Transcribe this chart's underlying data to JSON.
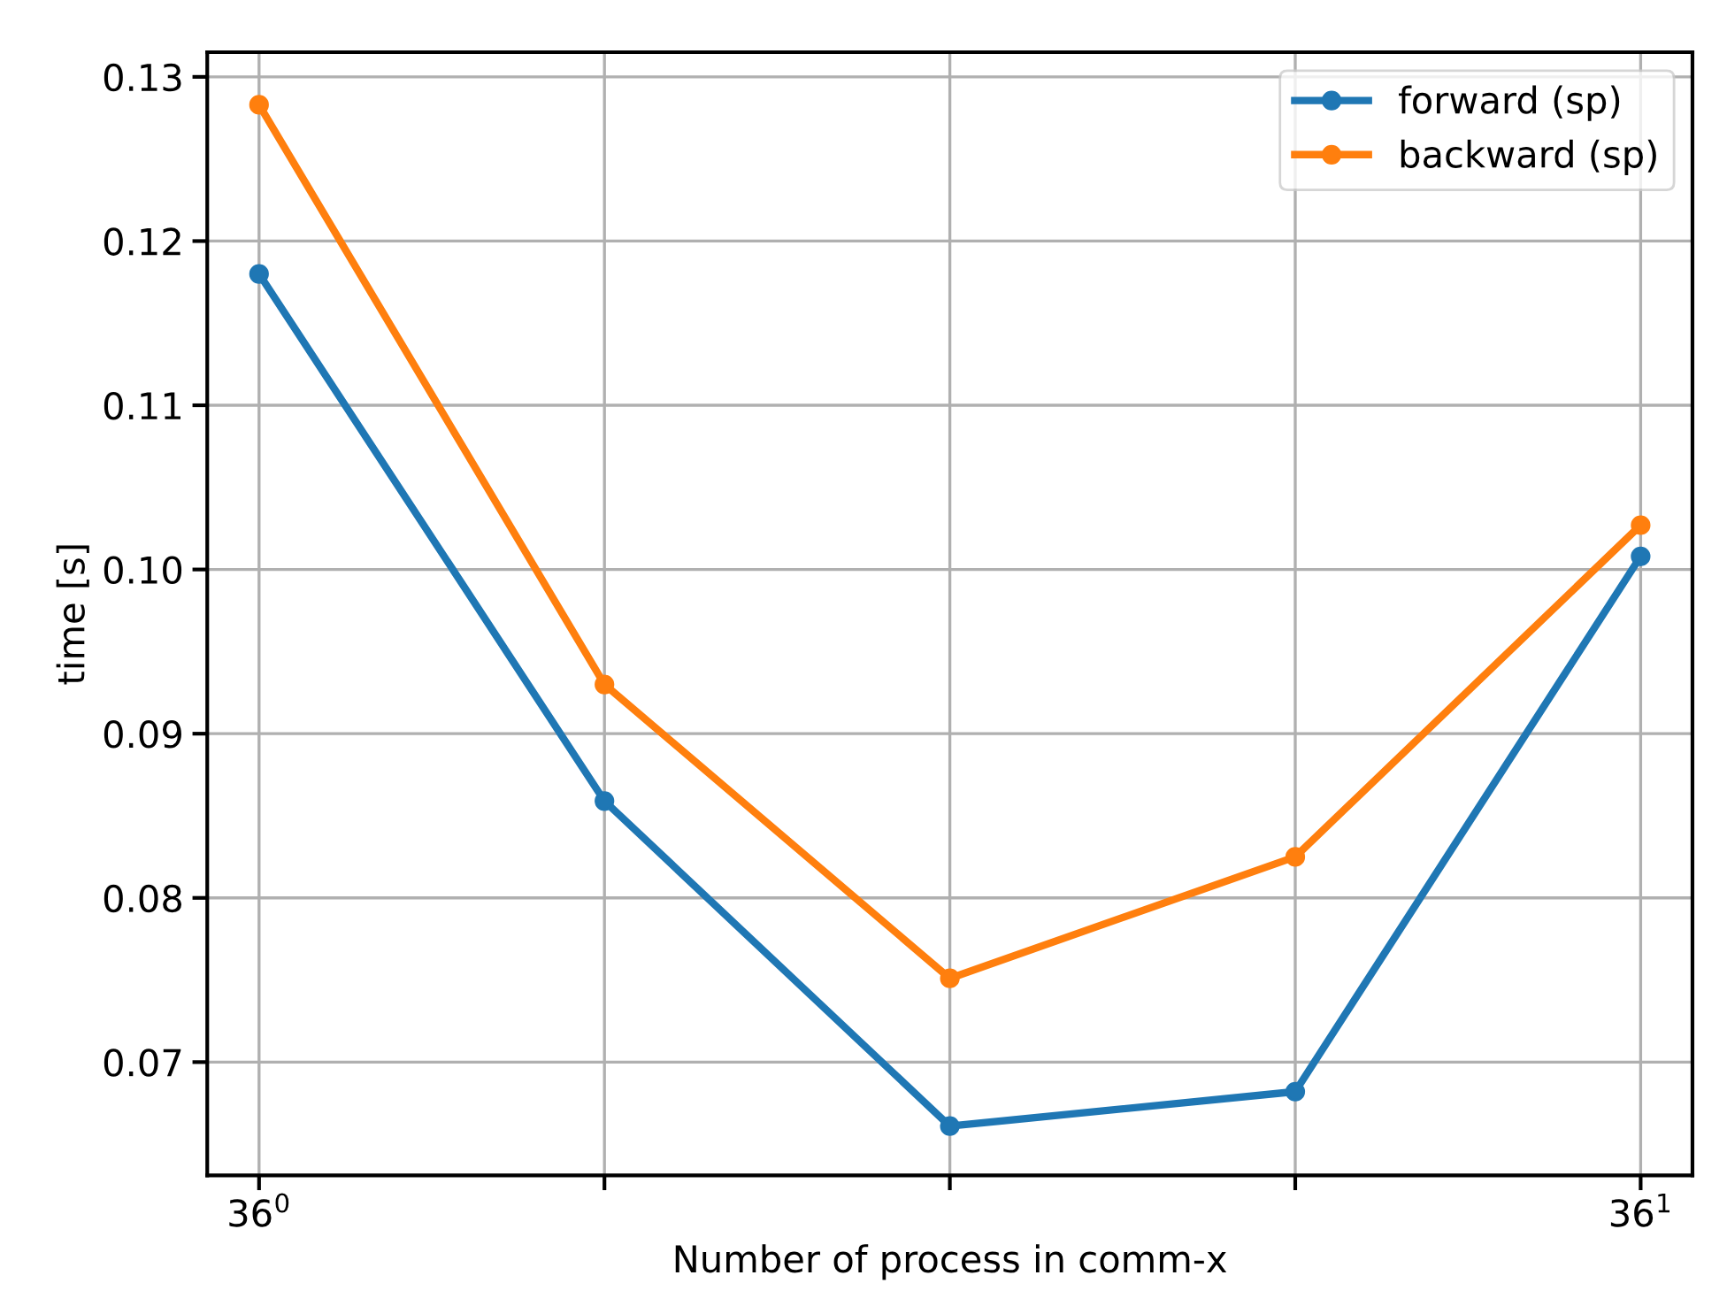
{
  "chart_data": {
    "type": "line",
    "xlabel": "Number of process in comm-x",
    "ylabel": "time [s]",
    "categories": [
      "36$^{0}$",
      null,
      null,
      null,
      "36$^{1}$"
    ],
    "series": [
      {
        "name": "forward (sp)",
        "color": "#1f77b4",
        "values": [
          0.118,
          0.0859,
          0.0661,
          0.0682,
          0.1008
        ]
      },
      {
        "name": "backward (sp)",
        "color": "#ff7f0e",
        "values": [
          0.1283,
          0.093,
          0.0751,
          0.0825,
          0.1027
        ]
      }
    ],
    "ylim": [
      0.0631,
      0.1315
    ],
    "yticks": [
      {
        "value": 0.07,
        "label": "0.07"
      },
      {
        "value": 0.08,
        "label": "0.08"
      },
      {
        "value": 0.09,
        "label": "0.09"
      },
      {
        "value": 0.1,
        "label": "0.10"
      },
      {
        "value": 0.11,
        "label": "0.11"
      },
      {
        "value": 0.12,
        "label": "0.12"
      },
      {
        "value": 0.13,
        "label": "0.13"
      }
    ],
    "grid": true,
    "legend": "top right",
    "marker": "circle",
    "line_style": "solid"
  }
}
